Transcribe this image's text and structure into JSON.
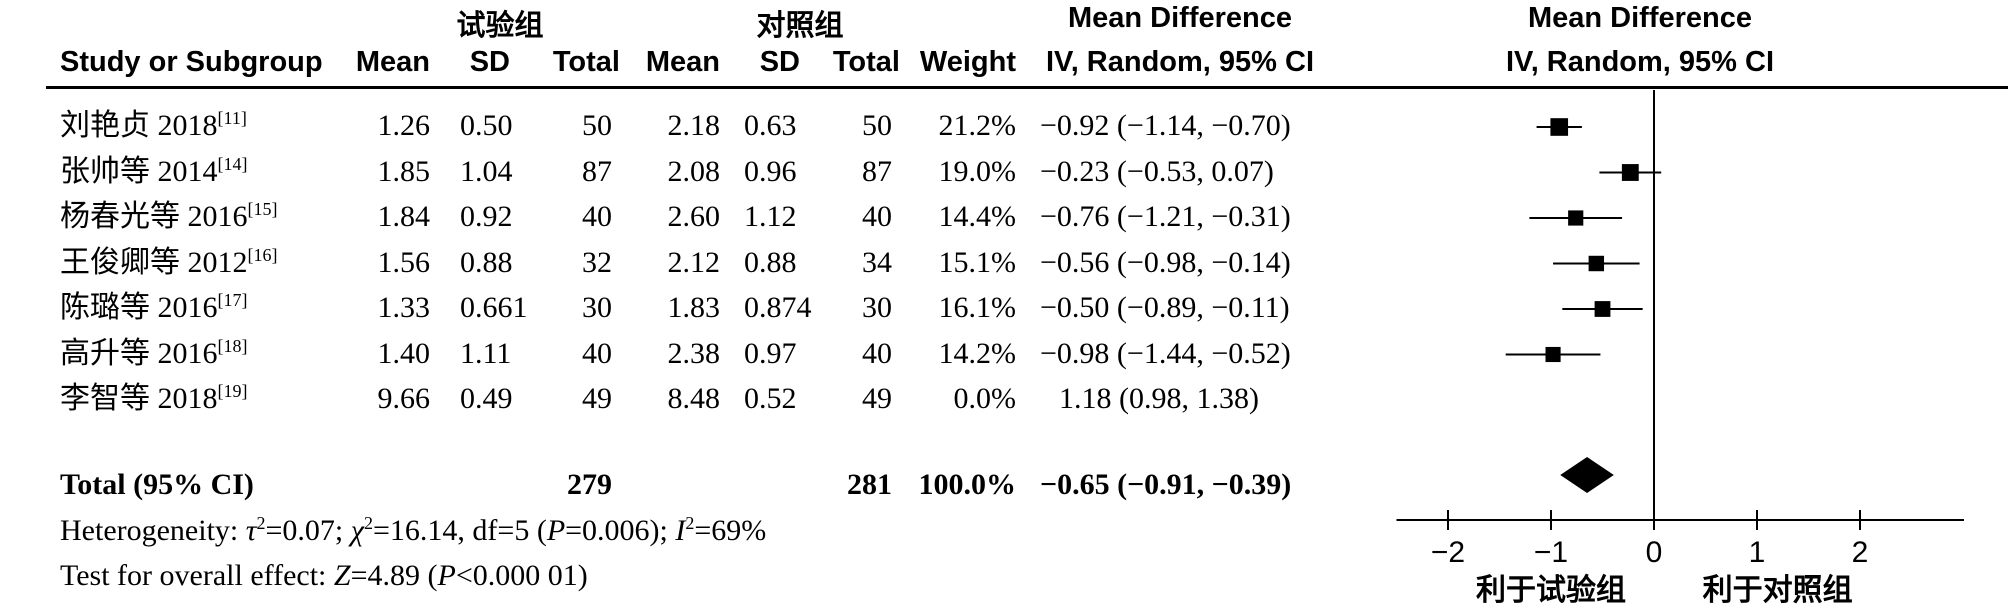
{
  "header": {
    "exp_group": "试验组",
    "ctrl_group": "对照组",
    "md_title": "Mean Difference",
    "plot_md_title": "Mean Difference",
    "col_study": "Study or Subgroup",
    "col_mean_exp": "Mean",
    "col_sd_exp": "SD",
    "col_total_exp": "Total",
    "col_mean_ctrl": "Mean",
    "col_sd_ctrl": "SD",
    "col_total_ctrl": "Total",
    "col_weight": "Weight",
    "col_ci": "IV, Random, 95% CI",
    "plot_ci": "IV, Random, 95% CI"
  },
  "studies": [
    {
      "name": "刘艳贞 2018",
      "ref": "[11]",
      "mean_exp": "1.26",
      "sd_exp": "0.50",
      "total_exp": "50",
      "mean_ctrl": "2.18",
      "sd_ctrl": "0.63",
      "total_ctrl": "50",
      "weight": "21.2%",
      "ci_text": "−0.92 (−1.14, −0.70)"
    },
    {
      "name": "张帅等 2014",
      "ref": "[14]",
      "mean_exp": "1.85",
      "sd_exp": "1.04",
      "total_exp": "87",
      "mean_ctrl": "2.08",
      "sd_ctrl": "0.96",
      "total_ctrl": "87",
      "weight": "19.0%",
      "ci_text": "−0.23 (−0.53, 0.07)"
    },
    {
      "name": "杨春光等 2016",
      "ref": "[15]",
      "mean_exp": "1.84",
      "sd_exp": "0.92",
      "total_exp": "40",
      "mean_ctrl": "2.60",
      "sd_ctrl": "1.12",
      "total_ctrl": "40",
      "weight": "14.4%",
      "ci_text": "−0.76 (−1.21, −0.31)"
    },
    {
      "name": "王俊卿等 2012",
      "ref": "[16]",
      "mean_exp": "1.56",
      "sd_exp": "0.88",
      "total_exp": "32",
      "mean_ctrl": "2.12",
      "sd_ctrl": "0.88",
      "total_ctrl": "34",
      "weight": "15.1%",
      "ci_text": "−0.56 (−0.98, −0.14)"
    },
    {
      "name": "陈璐等 2016",
      "ref": "[17]",
      "mean_exp": "1.33",
      "sd_exp": "0.661",
      "total_exp": "30",
      "mean_ctrl": "1.83",
      "sd_ctrl": "0.874",
      "total_ctrl": "30",
      "weight": "16.1%",
      "ci_text": "−0.50 (−0.89, −0.11)"
    },
    {
      "name": "高升等 2016",
      "ref": "[18]",
      "mean_exp": "1.40",
      "sd_exp": "1.11",
      "total_exp": "40",
      "mean_ctrl": "2.38",
      "sd_ctrl": "0.97",
      "total_ctrl": "40",
      "weight": "14.2%",
      "ci_text": "−0.98 (−1.44, −0.52)"
    },
    {
      "name": "李智等 2018",
      "ref": "[19]",
      "mean_exp": "9.66",
      "sd_exp": "0.49",
      "total_exp": "49",
      "mean_ctrl": "8.48",
      "sd_ctrl": "0.52",
      "total_ctrl": "49",
      "weight": "0.0%",
      "ci_text": "1.18 (0.98, 1.38)"
    }
  ],
  "total": {
    "label": "Total (95% CI)",
    "total_exp": "279",
    "total_ctrl": "281",
    "weight": "100.0%",
    "ci_text": "−0.65 (−0.91, −0.39)"
  },
  "footer": {
    "het_prefix": "Heterogeneity: ",
    "tau": "τ",
    "tau_val": "=0.07; ",
    "chi": "χ",
    "chi_val": "=16.14, df=5 (",
    "p1": "P",
    "p1_val": "=0.006); ",
    "i": "I",
    "i_val": "=69%",
    "sup2": "2",
    "overall_prefix": "Test for overall effect: ",
    "z": "Z",
    "z_val": "=4.89 (",
    "p2": "P",
    "p2_val": "<0.000 01)"
  },
  "chart_data": {
    "type": "forest",
    "title": "Mean Difference",
    "subtitle": "IV, Random, 95% CI",
    "xlim": [
      -2.5,
      3.0
    ],
    "xticks": [
      -2,
      -1,
      0,
      1,
      2
    ],
    "xtick_labels": [
      "−2",
      "−1",
      "0",
      "1",
      "2"
    ],
    "left_label": "利于试验组",
    "right_label": "利于对照组",
    "studies": [
      {
        "md": -0.92,
        "lo": -1.14,
        "hi": -0.7,
        "weight": 21.2
      },
      {
        "md": -0.23,
        "lo": -0.53,
        "hi": 0.07,
        "weight": 19.0
      },
      {
        "md": -0.76,
        "lo": -1.21,
        "hi": -0.31,
        "weight": 14.4
      },
      {
        "md": -0.56,
        "lo": -0.98,
        "hi": -0.14,
        "weight": 15.1
      },
      {
        "md": -0.5,
        "lo": -0.89,
        "hi": -0.11,
        "weight": 16.1
      },
      {
        "md": -0.98,
        "lo": -1.44,
        "hi": -0.52,
        "weight": 14.2
      }
    ],
    "pooled": {
      "md": -0.65,
      "lo": -0.91,
      "hi": -0.39
    }
  }
}
